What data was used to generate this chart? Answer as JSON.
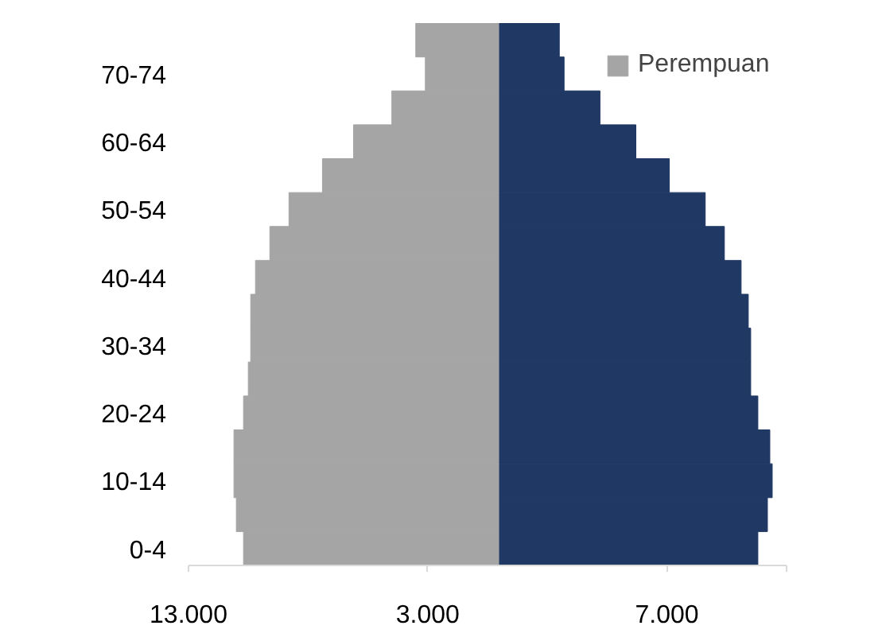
{
  "chart_data": {
    "type": "bar",
    "orientation": "horizontal",
    "stacked": true,
    "categories": [
      null,
      "70-74",
      null,
      "60-64",
      null,
      "50-54",
      null,
      "40-44",
      null,
      "30-34",
      null,
      "20-24",
      null,
      "10-14",
      null,
      "0-4"
    ],
    "series": [
      {
        "name": "Perempuan",
        "color": "#a5a5a5",
        "values": [
          -3500,
          -3100,
          -4500,
          -6100,
          -7400,
          -8800,
          -9600,
          -10200,
          -10400,
          -10400,
          -10500,
          -10700,
          -11100,
          -11100,
          -11000,
          -10700
        ]
      },
      {
        "color": "#203864",
        "values": [
          2500,
          2700,
          4200,
          5700,
          7100,
          8600,
          9400,
          10100,
          10400,
          10500,
          10500,
          10800,
          11300,
          11400,
          11200,
          10800
        ]
      }
    ],
    "xlim": [
      -13000,
      12000
    ],
    "xticks": [
      {
        "value": -13000,
        "label": "13.000"
      },
      {
        "value": -3000,
        "label": "3.000"
      },
      {
        "value": 7000,
        "label": "7.000"
      },
      {
        "value": 12000,
        "label": null
      }
    ],
    "grid": false,
    "legend": "top right"
  }
}
